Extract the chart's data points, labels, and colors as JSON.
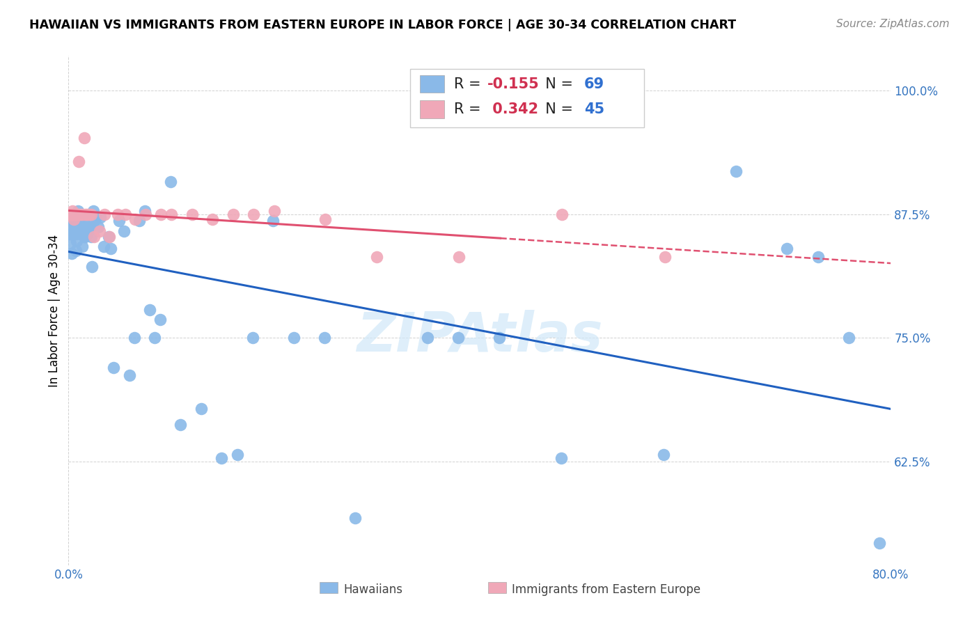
{
  "title": "HAWAIIAN VS IMMIGRANTS FROM EASTERN EUROPE IN LABOR FORCE | AGE 30-34 CORRELATION CHART",
  "source": "Source: ZipAtlas.com",
  "ylabel": "In Labor Force | Age 30-34",
  "yticks": [
    0.625,
    0.75,
    0.875,
    1.0
  ],
  "ytick_labels": [
    "62.5%",
    "75.0%",
    "87.5%",
    "100.0%"
  ],
  "xmin": 0.0,
  "xmax": 0.8,
  "ymin": 0.52,
  "ymax": 1.035,
  "blue_color": "#8ab9e8",
  "pink_color": "#f0a8b8",
  "blue_line_color": "#2060c0",
  "pink_line_color": "#e05070",
  "R_blue": -0.155,
  "N_blue": 69,
  "R_pink": 0.342,
  "N_pink": 45,
  "watermark_text": "ZIPAtlas",
  "watermark_color": "#d0e8f8",
  "title_fontsize": 12.5,
  "source_fontsize": 11,
  "tick_fontsize": 12,
  "legend_fontsize": 15,
  "ylabel_fontsize": 12,
  "blue_scatter_x": [
    0.001,
    0.002,
    0.003,
    0.003,
    0.004,
    0.004,
    0.005,
    0.005,
    0.006,
    0.006,
    0.007,
    0.007,
    0.008,
    0.008,
    0.009,
    0.009,
    0.01,
    0.01,
    0.011,
    0.012,
    0.013,
    0.014,
    0.015,
    0.015,
    0.016,
    0.017,
    0.018,
    0.019,
    0.021,
    0.022,
    0.023,
    0.024,
    0.025,
    0.027,
    0.029,
    0.031,
    0.034,
    0.039,
    0.041,
    0.044,
    0.049,
    0.054,
    0.059,
    0.064,
    0.069,
    0.074,
    0.079,
    0.084,
    0.089,
    0.099,
    0.109,
    0.129,
    0.149,
    0.164,
    0.179,
    0.199,
    0.219,
    0.249,
    0.279,
    0.349,
    0.379,
    0.419,
    0.479,
    0.579,
    0.649,
    0.699,
    0.729,
    0.759,
    0.789
  ],
  "blue_scatter_y": [
    0.855,
    0.845,
    0.835,
    0.86,
    0.855,
    0.87,
    0.865,
    0.858,
    0.872,
    0.858,
    0.855,
    0.838,
    0.848,
    0.872,
    0.878,
    0.862,
    0.868,
    0.862,
    0.872,
    0.855,
    0.842,
    0.858,
    0.852,
    0.872,
    0.852,
    0.862,
    0.855,
    0.862,
    0.862,
    0.852,
    0.822,
    0.878,
    0.868,
    0.872,
    0.862,
    0.872,
    0.842,
    0.852,
    0.84,
    0.72,
    0.868,
    0.858,
    0.712,
    0.75,
    0.868,
    0.878,
    0.778,
    0.75,
    0.768,
    0.908,
    0.662,
    0.678,
    0.628,
    0.632,
    0.75,
    0.868,
    0.75,
    0.75,
    0.568,
    0.75,
    0.75,
    0.75,
    0.628,
    0.632,
    0.918,
    0.84,
    0.832,
    0.75,
    0.542
  ],
  "pink_scatter_x": [
    0.001,
    0.002,
    0.002,
    0.003,
    0.003,
    0.004,
    0.004,
    0.005,
    0.005,
    0.006,
    0.006,
    0.007,
    0.007,
    0.008,
    0.008,
    0.009,
    0.01,
    0.01,
    0.012,
    0.013,
    0.015,
    0.016,
    0.018,
    0.02,
    0.022,
    0.025,
    0.03,
    0.035,
    0.04,
    0.048,
    0.055,
    0.065,
    0.075,
    0.09,
    0.1,
    0.12,
    0.14,
    0.16,
    0.18,
    0.2,
    0.25,
    0.3,
    0.38,
    0.48,
    0.58
  ],
  "pink_scatter_y": [
    0.875,
    0.875,
    0.875,
    0.875,
    0.875,
    0.875,
    0.878,
    0.875,
    0.87,
    0.875,
    0.875,
    0.875,
    0.875,
    0.875,
    0.875,
    0.875,
    0.875,
    0.928,
    0.875,
    0.875,
    0.952,
    0.875,
    0.875,
    0.875,
    0.875,
    0.852,
    0.858,
    0.875,
    0.852,
    0.875,
    0.875,
    0.87,
    0.875,
    0.875,
    0.875,
    0.875,
    0.87,
    0.875,
    0.875,
    0.878,
    0.87,
    0.832,
    0.832,
    0.875,
    0.832
  ]
}
